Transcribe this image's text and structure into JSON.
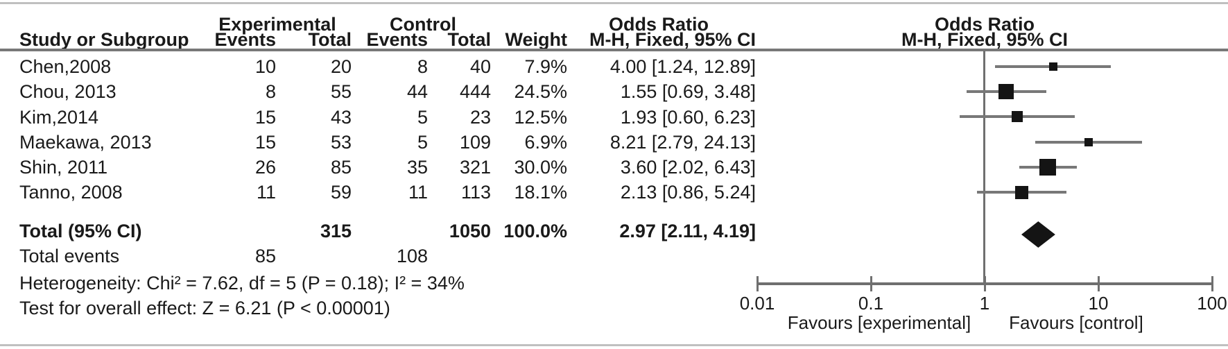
{
  "header": {
    "group_experimental": "Experimental",
    "group_control": "Control",
    "col_study": "Study or Subgroup",
    "col_events_exp": "Events",
    "col_total_exp": "Total",
    "col_events_ctrl": "Events",
    "col_total_ctrl": "Total",
    "col_weight": "Weight",
    "or_text_title": "Odds Ratio",
    "or_text_subtitle": "M-H, Fixed, 95% CI",
    "or_plot_title": "Odds Ratio",
    "or_plot_subtitle": "M-H, Fixed, 95% CI"
  },
  "studies": [
    {
      "name": "Chen,2008",
      "events_exp": "10",
      "total_exp": "20",
      "events_ctrl": "8",
      "total_ctrl": "40",
      "weight": "7.9%",
      "ci_text": "4.00 [1.24, 12.89]"
    },
    {
      "name": "Chou, 2013",
      "events_exp": "8",
      "total_exp": "55",
      "events_ctrl": "44",
      "total_ctrl": "444",
      "weight": "24.5%",
      "ci_text": "1.55 [0.69, 3.48]"
    },
    {
      "name": "Kim,2014",
      "events_exp": "15",
      "total_exp": "43",
      "events_ctrl": "5",
      "total_ctrl": "23",
      "weight": "12.5%",
      "ci_text": "1.93 [0.60, 6.23]"
    },
    {
      "name": "Maekawa, 2013",
      "events_exp": "15",
      "total_exp": "53",
      "events_ctrl": "5",
      "total_ctrl": "109",
      "weight": "6.9%",
      "ci_text": "8.21 [2.79, 24.13]"
    },
    {
      "name": "Shin, 2011",
      "events_exp": "26",
      "total_exp": "85",
      "events_ctrl": "35",
      "total_ctrl": "321",
      "weight": "30.0%",
      "ci_text": "3.60 [2.02, 6.43]"
    },
    {
      "name": "Tanno, 2008",
      "events_exp": "11",
      "total_exp": "59",
      "events_ctrl": "11",
      "total_ctrl": "113",
      "weight": "18.1%",
      "ci_text": "2.13 [0.86, 5.24]"
    }
  ],
  "totals": {
    "label": "Total (95% CI)",
    "total_exp": "315",
    "total_ctrl": "1050",
    "weight": "100.0%",
    "ci_text": "2.97 [2.11, 4.19]",
    "events_label": "Total events",
    "events_exp": "85",
    "events_ctrl": "108"
  },
  "footnotes": {
    "heterogeneity": "Heterogeneity: Chi² = 7.62, df = 5 (P = 0.18); I² = 34%",
    "overall_effect": "Test for overall effect: Z = 6.21 (P < 0.00001)"
  },
  "axis": {
    "tick_labels": [
      "0.01",
      "0.1",
      "1",
      "10",
      "100"
    ],
    "favours_left": "Favours [experimental]",
    "favours_right": "Favours [control]"
  },
  "chart_data": {
    "type": "forest",
    "effect_measure": "Odds Ratio, M-H, Fixed, 95% CI",
    "scale": "log10",
    "xlim": [
      0.01,
      100
    ],
    "axis_ticks": [
      0.01,
      0.1,
      1,
      10,
      100
    ],
    "studies": [
      {
        "name": "Chen,2008",
        "or": 4.0,
        "ci_low": 1.24,
        "ci_high": 12.89,
        "weight_pct": 7.9
      },
      {
        "name": "Chou, 2013",
        "or": 1.55,
        "ci_low": 0.69,
        "ci_high": 3.48,
        "weight_pct": 24.5
      },
      {
        "name": "Kim,2014",
        "or": 1.93,
        "ci_low": 0.6,
        "ci_high": 6.23,
        "weight_pct": 12.5
      },
      {
        "name": "Maekawa, 2013",
        "or": 8.21,
        "ci_low": 2.79,
        "ci_high": 24.13,
        "weight_pct": 6.9
      },
      {
        "name": "Shin, 2011",
        "or": 3.6,
        "ci_low": 2.02,
        "ci_high": 6.43,
        "weight_pct": 30.0
      },
      {
        "name": "Tanno, 2008",
        "or": 2.13,
        "ci_low": 0.86,
        "ci_high": 5.24,
        "weight_pct": 18.1
      }
    ],
    "total": {
      "or": 2.97,
      "ci_low": 2.11,
      "ci_high": 4.19
    },
    "heterogeneity": {
      "chi2": 7.62,
      "df": 5,
      "p": 0.18,
      "i2_pct": 34
    },
    "overall_effect": {
      "z": 6.21,
      "p": "< 0.00001"
    },
    "marker_color": "#141414",
    "line_color": "#787878"
  }
}
